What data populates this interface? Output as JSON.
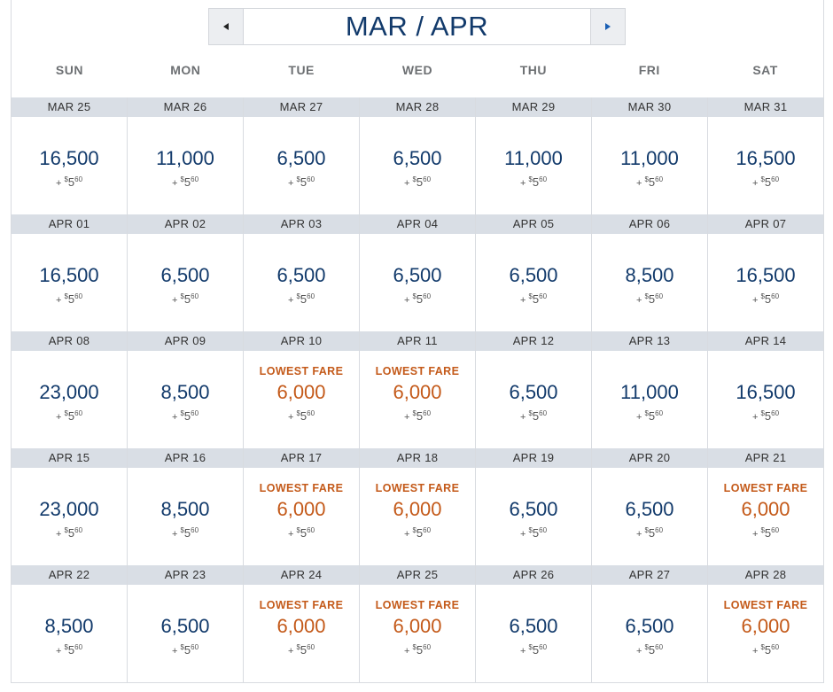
{
  "header": {
    "title": "MAR / APR",
    "prev_icon": "triangle-left-icon",
    "next_icon": "triangle-right-icon"
  },
  "weekdays": [
    "SUN",
    "MON",
    "TUE",
    "WED",
    "THU",
    "FRI",
    "SAT"
  ],
  "lowest_label": "LOWEST FARE",
  "fee": {
    "plus": "+",
    "currency": "$",
    "dollars": "5",
    "cents": "60"
  },
  "colors": {
    "price": "#123a6b",
    "lowest": "#c45a1a",
    "date_bar": "#d9dee5"
  },
  "weeks": [
    [
      {
        "date": "MAR 25",
        "price": "16,500",
        "lowest": false
      },
      {
        "date": "MAR 26",
        "price": "11,000",
        "lowest": false
      },
      {
        "date": "MAR 27",
        "price": "6,500",
        "lowest": false
      },
      {
        "date": "MAR 28",
        "price": "6,500",
        "lowest": false
      },
      {
        "date": "MAR 29",
        "price": "11,000",
        "lowest": false
      },
      {
        "date": "MAR 30",
        "price": "11,000",
        "lowest": false
      },
      {
        "date": "MAR 31",
        "price": "16,500",
        "lowest": false
      }
    ],
    [
      {
        "date": "APR 01",
        "price": "16,500",
        "lowest": false
      },
      {
        "date": "APR 02",
        "price": "6,500",
        "lowest": false
      },
      {
        "date": "APR 03",
        "price": "6,500",
        "lowest": false
      },
      {
        "date": "APR 04",
        "price": "6,500",
        "lowest": false
      },
      {
        "date": "APR 05",
        "price": "6,500",
        "lowest": false
      },
      {
        "date": "APR 06",
        "price": "8,500",
        "lowest": false
      },
      {
        "date": "APR 07",
        "price": "16,500",
        "lowest": false
      }
    ],
    [
      {
        "date": "APR 08",
        "price": "23,000",
        "lowest": false
      },
      {
        "date": "APR 09",
        "price": "8,500",
        "lowest": false
      },
      {
        "date": "APR 10",
        "price": "6,000",
        "lowest": true
      },
      {
        "date": "APR 11",
        "price": "6,000",
        "lowest": true
      },
      {
        "date": "APR 12",
        "price": "6,500",
        "lowest": false
      },
      {
        "date": "APR 13",
        "price": "11,000",
        "lowest": false
      },
      {
        "date": "APR 14",
        "price": "16,500",
        "lowest": false
      }
    ],
    [
      {
        "date": "APR 15",
        "price": "23,000",
        "lowest": false
      },
      {
        "date": "APR 16",
        "price": "8,500",
        "lowest": false
      },
      {
        "date": "APR 17",
        "price": "6,000",
        "lowest": true
      },
      {
        "date": "APR 18",
        "price": "6,000",
        "lowest": true
      },
      {
        "date": "APR 19",
        "price": "6,500",
        "lowest": false
      },
      {
        "date": "APR 20",
        "price": "6,500",
        "lowest": false
      },
      {
        "date": "APR 21",
        "price": "6,000",
        "lowest": true
      }
    ],
    [
      {
        "date": "APR 22",
        "price": "8,500",
        "lowest": false
      },
      {
        "date": "APR 23",
        "price": "6,500",
        "lowest": false
      },
      {
        "date": "APR 24",
        "price": "6,000",
        "lowest": true
      },
      {
        "date": "APR 25",
        "price": "6,000",
        "lowest": true
      },
      {
        "date": "APR 26",
        "price": "6,500",
        "lowest": false
      },
      {
        "date": "APR 27",
        "price": "6,500",
        "lowest": false
      },
      {
        "date": "APR 28",
        "price": "6,000",
        "lowest": true
      }
    ]
  ]
}
